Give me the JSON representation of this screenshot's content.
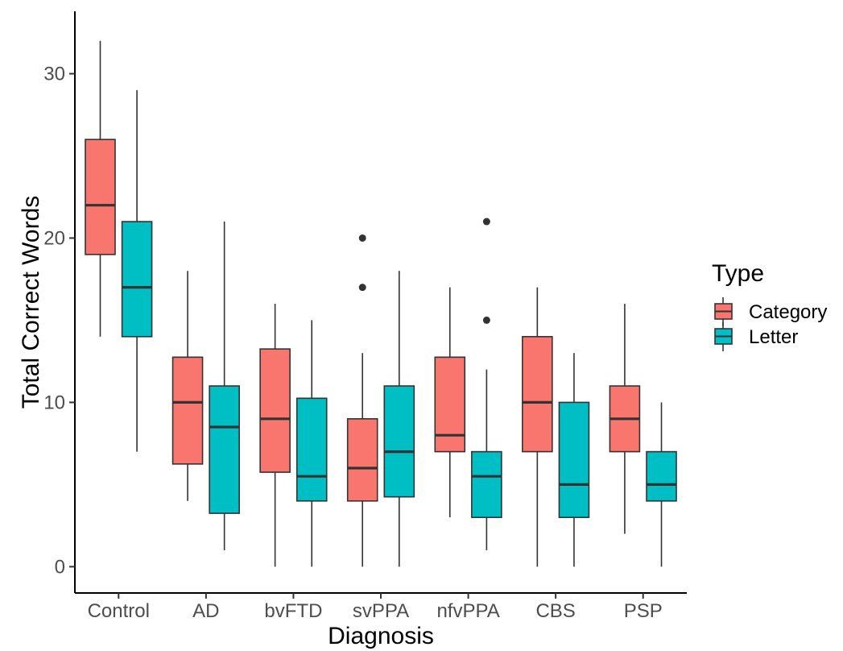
{
  "chart_data": {
    "type": "boxplot",
    "title": "",
    "xlabel": "Diagnosis",
    "ylabel": "Total Correct Words",
    "categories": [
      "Control",
      "AD",
      "bvFTD",
      "svPPA",
      "nfvPPA",
      "CBS",
      "PSP"
    ],
    "yticks": [
      0,
      10,
      20,
      30
    ],
    "ylim": [
      -1.6,
      33.8
    ],
    "grid": false,
    "legend": {
      "title": "Type",
      "position": "right",
      "entries": [
        {
          "label": "Category",
          "color": "#F8766D"
        },
        {
          "label": "Letter",
          "color": "#00BFC4"
        }
      ]
    },
    "series": [
      {
        "name": "Category",
        "color": "#F8766D",
        "boxes": [
          {
            "category": "Control",
            "min": 14,
            "q1": 19,
            "median": 22,
            "q3": 26,
            "max": 32,
            "outliers": []
          },
          {
            "category": "AD",
            "min": 4,
            "q1": 6.25,
            "median": 10,
            "q3": 12.75,
            "max": 18,
            "outliers": []
          },
          {
            "category": "bvFTD",
            "min": 0,
            "q1": 5.75,
            "median": 9,
            "q3": 13.25,
            "max": 16,
            "outliers": []
          },
          {
            "category": "svPPA",
            "min": 0,
            "q1": 4,
            "median": 6,
            "q3": 9,
            "max": 13,
            "outliers": [
              17,
              20
            ]
          },
          {
            "category": "nfvPPA",
            "min": 3,
            "q1": 7,
            "median": 8,
            "q3": 12.75,
            "max": 17,
            "outliers": []
          },
          {
            "category": "CBS",
            "min": 0,
            "q1": 7,
            "median": 10,
            "q3": 14,
            "max": 17,
            "outliers": []
          },
          {
            "category": "PSP",
            "min": 2,
            "q1": 7,
            "median": 9,
            "q3": 11,
            "max": 16,
            "outliers": []
          }
        ]
      },
      {
        "name": "Letter",
        "color": "#00BFC4",
        "boxes": [
          {
            "category": "Control",
            "min": 7,
            "q1": 14,
            "median": 17,
            "q3": 21,
            "max": 29,
            "outliers": []
          },
          {
            "category": "AD",
            "min": 1,
            "q1": 3.25,
            "median": 8.5,
            "q3": 11,
            "max": 21,
            "outliers": []
          },
          {
            "category": "bvFTD",
            "min": 0,
            "q1": 4,
            "median": 5.5,
            "q3": 10.25,
            "max": 15,
            "outliers": []
          },
          {
            "category": "svPPA",
            "min": 0,
            "q1": 4.25,
            "median": 7,
            "q3": 11,
            "max": 18,
            "outliers": []
          },
          {
            "category": "nfvPPA",
            "min": 1,
            "q1": 3,
            "median": 5.5,
            "q3": 7,
            "max": 12,
            "outliers": [
              15,
              21
            ]
          },
          {
            "category": "CBS",
            "min": 0,
            "q1": 3,
            "median": 5,
            "q3": 10,
            "max": 13,
            "outliers": []
          },
          {
            "category": "PSP",
            "min": 0,
            "q1": 4,
            "median": 5,
            "q3": 7,
            "max": 10,
            "outliers": []
          }
        ]
      }
    ]
  }
}
